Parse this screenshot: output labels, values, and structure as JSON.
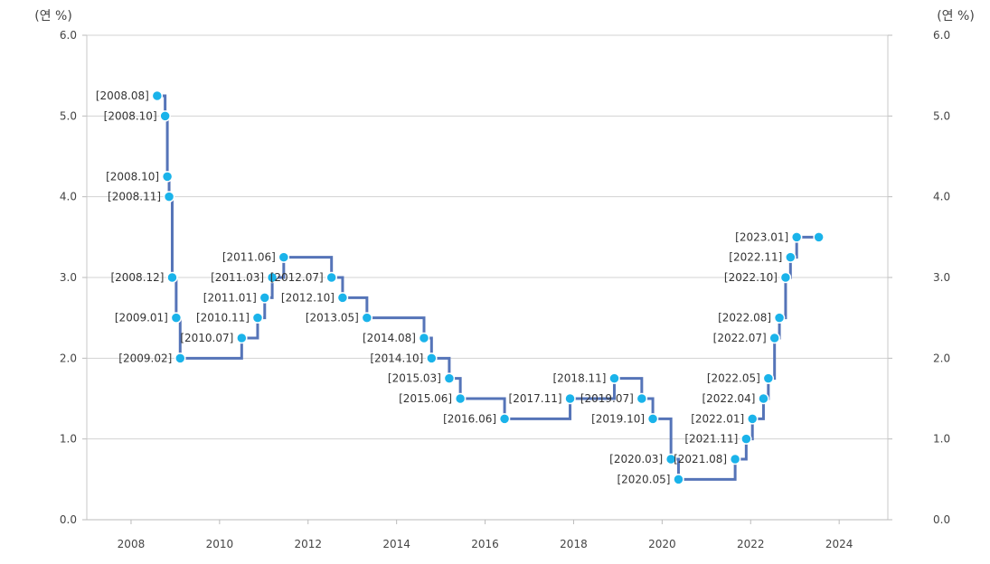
{
  "chart_data": {
    "type": "line",
    "step": true,
    "y_unit_left": "(연 %)",
    "y_unit_right": "(연 %)",
    "ylim": [
      0,
      6
    ],
    "xlim": [
      2007.0,
      2025.1
    ],
    "y_ticks": [
      "0.0",
      "1.0",
      "2.0",
      "3.0",
      "4.0",
      "5.0",
      "6.0"
    ],
    "x_ticks": [
      "2008",
      "2010",
      "2012",
      "2014",
      "2016",
      "2018",
      "2020",
      "2022",
      "2024"
    ],
    "grid": true,
    "line_color": "#5574b8",
    "marker_color": "#1ab3ea",
    "points": [
      {
        "label": "[2008.08]",
        "x": 2008.59,
        "y": 5.25
      },
      {
        "label": "[2008.10]",
        "x": 2008.77,
        "y": 5.0
      },
      {
        "label": "[2008.10]",
        "x": 2008.82,
        "y": 4.25
      },
      {
        "label": "[2008.11]",
        "x": 2008.86,
        "y": 4.0
      },
      {
        "label": "[2008.12]",
        "x": 2008.93,
        "y": 3.0
      },
      {
        "label": "[2009.01]",
        "x": 2009.02,
        "y": 2.5
      },
      {
        "label": "[2009.02]",
        "x": 2009.11,
        "y": 2.0
      },
      {
        "label": "[2010.07]",
        "x": 2010.5,
        "y": 2.25
      },
      {
        "label": "[2010.11]",
        "x": 2010.86,
        "y": 2.5
      },
      {
        "label": "[2011.01]",
        "x": 2011.02,
        "y": 2.75
      },
      {
        "label": "[2011.03]",
        "x": 2011.19,
        "y": 3.0
      },
      {
        "label": "[2011.06]",
        "x": 2011.45,
        "y": 3.25
      },
      {
        "label": "[2012.07]",
        "x": 2012.53,
        "y": 3.0
      },
      {
        "label": "[2012.10]",
        "x": 2012.78,
        "y": 2.75
      },
      {
        "label": "[2013.05]",
        "x": 2013.33,
        "y": 2.5
      },
      {
        "label": "[2014.08]",
        "x": 2014.62,
        "y": 2.25
      },
      {
        "label": "[2014.10]",
        "x": 2014.79,
        "y": 2.0
      },
      {
        "label": "[2015.03]",
        "x": 2015.19,
        "y": 1.75
      },
      {
        "label": "[2015.06]",
        "x": 2015.44,
        "y": 1.5
      },
      {
        "label": "[2016.06]",
        "x": 2016.44,
        "y": 1.25
      },
      {
        "label": "[2017.11]",
        "x": 2017.92,
        "y": 1.5
      },
      {
        "label": "[2018.11]",
        "x": 2018.92,
        "y": 1.75
      },
      {
        "label": "[2019.07]",
        "x": 2019.54,
        "y": 1.5
      },
      {
        "label": "[2019.10]",
        "x": 2019.79,
        "y": 1.25
      },
      {
        "label": "[2020.03]",
        "x": 2020.2,
        "y": 0.75
      },
      {
        "label": "[2020.05]",
        "x": 2020.37,
        "y": 0.5
      },
      {
        "label": "[2021.08]",
        "x": 2021.65,
        "y": 0.75
      },
      {
        "label": "[2021.11]",
        "x": 2021.9,
        "y": 1.0
      },
      {
        "label": "[2022.01]",
        "x": 2022.04,
        "y": 1.25
      },
      {
        "label": "[2022.04]",
        "x": 2022.29,
        "y": 1.5
      },
      {
        "label": "[2022.05]",
        "x": 2022.4,
        "y": 1.75
      },
      {
        "label": "[2022.07]",
        "x": 2022.54,
        "y": 2.25
      },
      {
        "label": "[2022.08]",
        "x": 2022.65,
        "y": 2.5
      },
      {
        "label": "[2022.10]",
        "x": 2022.79,
        "y": 3.0
      },
      {
        "label": "[2022.11]",
        "x": 2022.9,
        "y": 3.25
      },
      {
        "label": "[2023.01]",
        "x": 2023.04,
        "y": 3.5
      },
      {
        "label": "",
        "x": 2023.54,
        "y": 3.5
      }
    ]
  }
}
